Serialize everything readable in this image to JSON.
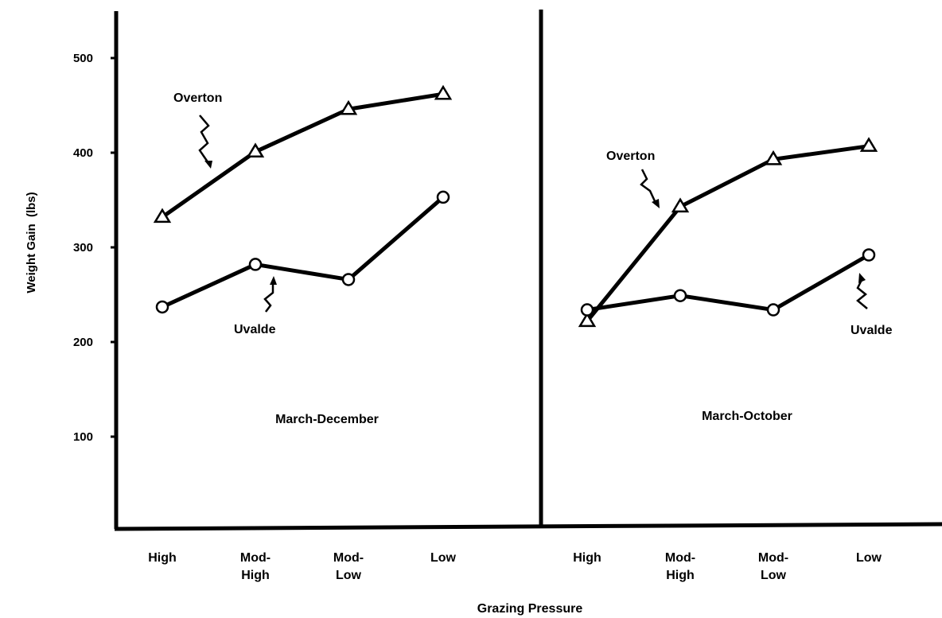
{
  "chart_data": {
    "type": "line",
    "ylabel": "Weight Gain  (lbs)",
    "xlabel": "Grazing Pressure",
    "ylim": [
      0,
      550
    ],
    "yticks": [
      100,
      200,
      300,
      400,
      500
    ],
    "categories": [
      [
        "High"
      ],
      [
        "Mod-",
        "High"
      ],
      [
        "Mod-",
        "Low"
      ],
      [
        "Low"
      ]
    ],
    "grid": false,
    "panels": [
      {
        "title": "March-December",
        "series": [
          {
            "name": "Overton",
            "marker": "triangle",
            "values": [
              332,
              401,
              446,
              462
            ]
          },
          {
            "name": "Uvalde",
            "marker": "circle",
            "values": [
              237,
              282,
              266,
              353
            ]
          }
        ]
      },
      {
        "title": "March-October",
        "series": [
          {
            "name": "Overton",
            "marker": "triangle",
            "values": [
              222,
              343,
              393,
              407
            ]
          },
          {
            "name": "Uvalde",
            "marker": "circle",
            "values": [
              234,
              249,
              234,
              292
            ]
          }
        ]
      }
    ]
  }
}
